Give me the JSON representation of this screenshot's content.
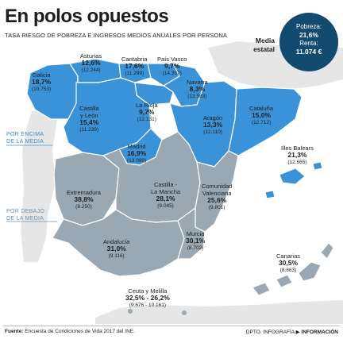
{
  "title": "En polos opuestos",
  "subtitle": "TASA RIESGO DE POBREZA E INGRESOS MEDIOS ANUALES POR PERSONA",
  "national": {
    "label_line1": "Media",
    "label_line2": "estatal",
    "poverty_label": "Pobreza:",
    "poverty_value": "21,6%",
    "income_label": "Renta:",
    "income_value": "11.074 €"
  },
  "legend": {
    "above_line1": "POR ENCIMA",
    "above_line2": "DE LA MEDIA",
    "below_line1": "POR DEBAJO",
    "below_line2": "DE LA MEDIA"
  },
  "colors": {
    "above": "#3a93d8",
    "below": "#9aa8b4",
    "border": "#ffffff",
    "neighbor": "#e3e3e3",
    "circle": "#124b6f"
  },
  "regions": [
    {
      "id": "galicia",
      "name": "Galicia",
      "poverty": "18,7%",
      "income": "(10.753)",
      "group": "above"
    },
    {
      "id": "asturias",
      "name": "Asturias",
      "poverty": "12,6%",
      "income": "(12.244)",
      "group": "above"
    },
    {
      "id": "cantabria",
      "name": "Cantabria",
      "poverty": "17,6%",
      "income": "(11.299)",
      "group": "above"
    },
    {
      "id": "pais-vasco",
      "name": "País Vasco",
      "poverty": "9,7%",
      "income": "(14.397)",
      "group": "above"
    },
    {
      "id": "navarra",
      "name": "Navarra",
      "poverty": "8,3%",
      "income": "(13.583)",
      "group": "above"
    },
    {
      "id": "la-rioja",
      "name": "La Rioja",
      "poverty": "9,7%",
      "income": "(12.131)",
      "group": "above"
    },
    {
      "id": "castilla-leon",
      "name": "Castilla y León",
      "name_line1": "Castilla",
      "name_line2": "y León",
      "poverty": "15,4%",
      "income": "(11.239)",
      "group": "above"
    },
    {
      "id": "aragon",
      "name": "Aragón",
      "poverty": "13,3%",
      "income": "(12.110)",
      "group": "above"
    },
    {
      "id": "cataluna",
      "name": "Cataluña",
      "poverty": "15,0%",
      "income": "(12.712)",
      "group": "above"
    },
    {
      "id": "madrid",
      "name": "Madrid",
      "poverty": "16,9%",
      "income": "(13.099)",
      "group": "above"
    },
    {
      "id": "baleares",
      "name": "Illes Balears",
      "poverty": "21,3%",
      "income": "(12.665)",
      "group": "above"
    },
    {
      "id": "extremadura",
      "name": "Extremadura",
      "poverty": "38,8%",
      "income": "(8.250)",
      "group": "below"
    },
    {
      "id": "castilla-mancha",
      "name": "Castilla - La Mancha",
      "name_line1": "Castilla -",
      "name_line2": "La Mancha",
      "poverty": "28,1%",
      "income": "(9.045)",
      "group": "below"
    },
    {
      "id": "valenciana",
      "name": "Comunidad Valenciana",
      "name_line1": "Comunidad",
      "name_line2": "Valenciana",
      "poverty": "25,6%",
      "income": "(9.801)",
      "group": "below"
    },
    {
      "id": "andalucia",
      "name": "Andalucía",
      "poverty": "31,0%",
      "income": "(9.116)",
      "group": "below"
    },
    {
      "id": "murcia",
      "name": "Murcia",
      "poverty": "30,1%",
      "income": "(8.702)",
      "group": "below"
    },
    {
      "id": "canarias",
      "name": "Canarias",
      "poverty": "30,5%",
      "income": "(8.863)",
      "group": "below"
    },
    {
      "id": "ceuta-melilla",
      "name": "Ceuta y Melilla",
      "poverty": "32,5% - 26,2%",
      "income": "(9.676 - 10.161)",
      "group": "below"
    }
  ],
  "footer": {
    "source_label": "Fuente:",
    "source_text": "Encuesta de Condiciones de Vida 2017 del INE.",
    "dept": "DPTO. INFOGRAFÍA",
    "arrow": "▶",
    "brand": "INFORMACIÓN"
  }
}
